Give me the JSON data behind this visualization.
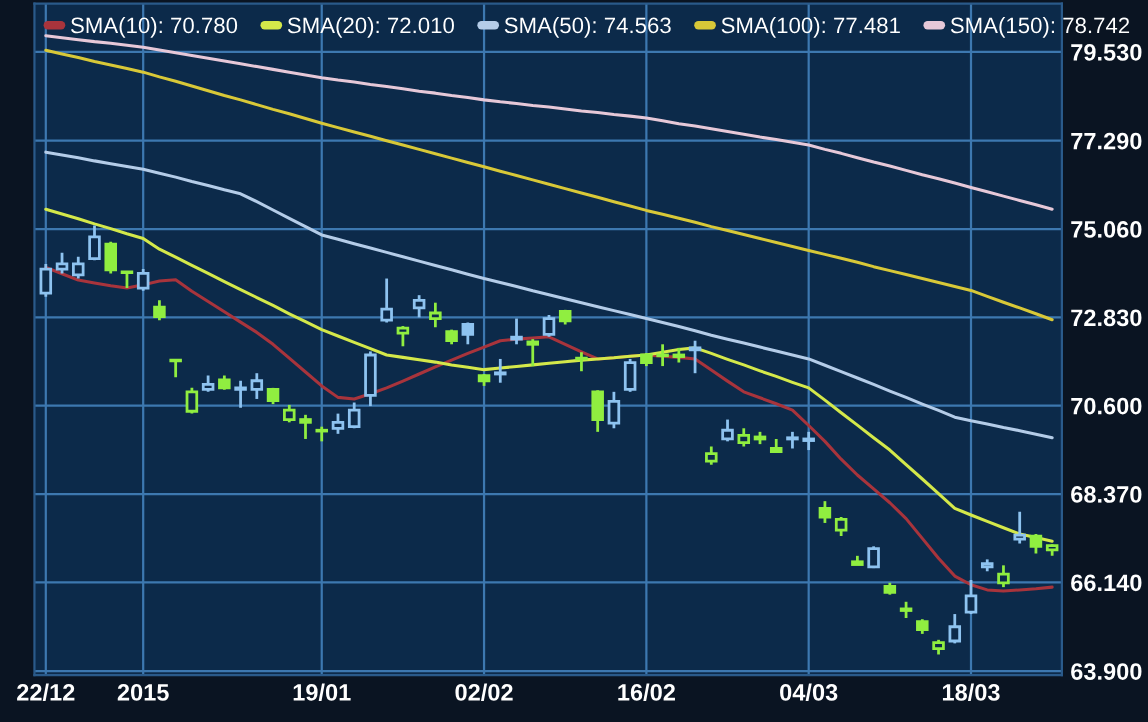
{
  "chart_data": {
    "type": "candlestick",
    "categories": [
      "22/12",
      null,
      null,
      null,
      null,
      null,
      "2015",
      null,
      null,
      null,
      null,
      null,
      null,
      null,
      null,
      null,
      null,
      "19/01",
      null,
      null,
      null,
      null,
      null,
      null,
      null,
      null,
      null,
      "02/02",
      null,
      null,
      null,
      null,
      null,
      null,
      null,
      null,
      null,
      "16/02",
      null,
      null,
      null,
      null,
      null,
      null,
      null,
      null,
      null,
      "04/03",
      null,
      null,
      null,
      null,
      null,
      null,
      null,
      null,
      null,
      "18/03",
      null,
      null,
      null,
      null,
      null
    ],
    "ohlc": [
      [
        73.44,
        74.18,
        73.35,
        74.05
      ],
      [
        74.05,
        74.46,
        73.94,
        74.18
      ],
      [
        73.9,
        74.36,
        73.81,
        74.18
      ],
      [
        74.31,
        75.15,
        74.27,
        74.86
      ],
      [
        74.68,
        74.74,
        73.94,
        74.03
      ],
      [
        73.98,
        74.0,
        73.57,
        73.96
      ],
      [
        73.57,
        74.05,
        73.5,
        73.94
      ],
      [
        73.09,
        73.26,
        72.76,
        72.85
      ],
      [
        71.75,
        71.75,
        71.32,
        71.73
      ],
      [
        70.46,
        71.05,
        70.4,
        70.95
      ],
      [
        71.01,
        71.36,
        70.95,
        71.14
      ],
      [
        71.25,
        71.36,
        71.0,
        71.05
      ],
      [
        71.01,
        71.23,
        70.55,
        71.05
      ],
      [
        71.01,
        71.42,
        70.77,
        71.23
      ],
      [
        71.01,
        71.05,
        70.64,
        70.73
      ],
      [
        70.25,
        70.62,
        70.18,
        70.49
      ],
      [
        70.25,
        70.37,
        69.76,
        70.18
      ],
      [
        69.98,
        70.07,
        69.7,
        69.96
      ],
      [
        70.03,
        70.4,
        69.89,
        70.18
      ],
      [
        70.07,
        70.68,
        70.03,
        70.49
      ],
      [
        70.86,
        71.97,
        70.59,
        71.88
      ],
      [
        72.76,
        73.81,
        72.7,
        73.04
      ],
      [
        72.43,
        72.61,
        72.1,
        72.56
      ],
      [
        73.07,
        73.39,
        72.83,
        73.26
      ],
      [
        72.8,
        73.2,
        72.58,
        72.94
      ],
      [
        72.47,
        72.52,
        72.15,
        72.24
      ],
      [
        72.65,
        72.7,
        72.15,
        72.4
      ],
      [
        71.36,
        71.4,
        71.1,
        71.23
      ],
      [
        71.4,
        71.78,
        71.18,
        71.43
      ],
      [
        72.28,
        72.8,
        72.15,
        72.33
      ],
      [
        72.21,
        72.28,
        71.6,
        72.15
      ],
      [
        72.4,
        72.89,
        72.34,
        72.8
      ],
      [
        72.98,
        73.02,
        72.65,
        72.74
      ],
      [
        71.8,
        71.95,
        71.47,
        71.78
      ],
      [
        70.95,
        70.99,
        69.94,
        70.25
      ],
      [
        70.16,
        70.95,
        70.03,
        70.71
      ],
      [
        71.01,
        71.78,
        70.95,
        71.69
      ],
      [
        71.88,
        71.93,
        71.6,
        71.69
      ],
      [
        71.88,
        72.15,
        71.6,
        71.86
      ],
      [
        71.84,
        72.06,
        71.69,
        71.88
      ],
      [
        72.01,
        72.24,
        71.42,
        72.06
      ],
      [
        69.2,
        69.57,
        69.11,
        69.39
      ],
      [
        69.76,
        70.25,
        69.7,
        69.98
      ],
      [
        69.67,
        70.03,
        69.57,
        69.85
      ],
      [
        69.81,
        69.94,
        69.63,
        69.76
      ],
      [
        69.52,
        69.76,
        69.44,
        69.44
      ],
      [
        69.76,
        69.94,
        69.52,
        69.79
      ],
      [
        69.72,
        69.94,
        69.48,
        69.76
      ],
      [
        68.01,
        68.19,
        67.64,
        67.79
      ],
      [
        67.46,
        67.79,
        67.31,
        67.73
      ],
      [
        66.66,
        66.81,
        66.59,
        66.59
      ],
      [
        66.53,
        67.05,
        66.5,
        66.99
      ],
      [
        66.04,
        66.13,
        65.83,
        65.89
      ],
      [
        65.47,
        65.65,
        65.24,
        65.43
      ],
      [
        65.15,
        65.21,
        64.84,
        64.95
      ],
      [
        64.47,
        64.69,
        64.32,
        64.62
      ],
      [
        64.66,
        65.34,
        64.6,
        65.02
      ],
      [
        65.39,
        66.2,
        65.34,
        65.8
      ],
      [
        66.53,
        66.72,
        66.42,
        66.61
      ],
      [
        66.13,
        66.57,
        66.02,
        66.35
      ],
      [
        67.23,
        67.92,
        67.12,
        67.33
      ],
      [
        67.31,
        67.36,
        66.87,
        67.05
      ],
      [
        66.96,
        67.1,
        66.81,
        67.07
      ]
    ],
    "colors": [
      "#8ec3f0",
      "#8ec3f0",
      "#8ec3f0",
      "#8ec3f0",
      "#90ee40",
      "#90ee40",
      "#8ec3f0",
      "#90ee40",
      "#90ee40",
      "#90ee40",
      "#8ec3f0",
      "#90ee40",
      "#8ec3f0",
      "#8ec3f0",
      "#90ee40",
      "#90ee40",
      "#90ee40",
      "#90ee40",
      "#8ec3f0",
      "#8ec3f0",
      "#8ec3f0",
      "#8ec3f0",
      "#90ee40",
      "#8ec3f0",
      "#90ee40",
      "#90ee40",
      "#8ec3f0",
      "#90ee40",
      "#8ec3f0",
      "#8ec3f0",
      "#90ee40",
      "#8ec3f0",
      "#90ee40",
      "#90ee40",
      "#90ee40",
      "#8ec3f0",
      "#8ec3f0",
      "#90ee40",
      "#90ee40",
      "#90ee40",
      "#8ec3f0",
      "#90ee40",
      "#8ec3f0",
      "#90ee40",
      "#90ee40",
      "#90ee40",
      "#8ec3f0",
      "#8ec3f0",
      "#90ee40",
      "#90ee40",
      "#90ee40",
      "#8ec3f0",
      "#90ee40",
      "#90ee40",
      "#90ee40",
      "#90ee40",
      "#8ec3f0",
      "#8ec3f0",
      "#8ec3f0",
      "#90ee40",
      "#8ec3f0",
      "#90ee40",
      "#90ee40"
    ],
    "series": [
      {
        "name": "SMA(10): 70.780",
        "type": "line",
        "color": "#a8343c",
        "values": [
          74.09,
          73.93,
          73.77,
          73.7,
          73.63,
          73.57,
          73.65,
          73.75,
          73.78,
          73.49,
          73.23,
          72.97,
          72.71,
          72.45,
          72.15,
          71.8,
          71.45,
          71.1,
          70.81,
          70.77,
          70.9,
          71.05,
          71.22,
          71.4,
          71.58,
          71.75,
          71.92,
          72.08,
          72.24,
          72.28,
          72.31,
          72.34,
          72.15,
          71.96,
          71.78,
          71.81,
          71.85,
          71.88,
          71.85,
          71.82,
          71.78,
          71.5,
          71.22,
          70.95,
          70.8,
          70.65,
          70.49,
          70.1,
          69.7,
          69.25,
          68.85,
          68.5,
          68.15,
          67.75,
          67.25,
          66.75,
          66.3,
          66.08,
          65.95,
          65.92,
          65.95,
          65.98,
          66.02
        ]
      },
      {
        "name": "SMA(20): 72.010",
        "type": "line",
        "color": "#d4e84a",
        "values": [
          75.56,
          75.44,
          75.32,
          75.19,
          75.07,
          74.94,
          74.82,
          74.55,
          74.35,
          74.14,
          73.94,
          73.73,
          73.53,
          73.33,
          73.13,
          72.92,
          72.72,
          72.52,
          72.36,
          72.2,
          72.04,
          71.88,
          71.82,
          71.76,
          71.7,
          71.63,
          71.57,
          71.51,
          71.55,
          71.59,
          71.63,
          71.67,
          71.71,
          71.75,
          71.78,
          71.81,
          71.85,
          71.88,
          71.95,
          72.02,
          72.06,
          71.92,
          71.77,
          71.63,
          71.48,
          71.34,
          71.19,
          71.05,
          70.74,
          70.42,
          70.11,
          69.79,
          69.48,
          69.11,
          68.75,
          68.38,
          68.01,
          67.84,
          67.68,
          67.52,
          67.36,
          67.27,
          67.18
        ]
      },
      {
        "name": "SMA(50): 74.563",
        "type": "line",
        "color": "#b4cce8",
        "values": [
          77.0,
          76.93,
          76.86,
          76.78,
          76.71,
          76.64,
          76.57,
          76.47,
          76.37,
          76.26,
          76.16,
          76.05,
          75.95,
          75.75,
          75.54,
          75.33,
          75.12,
          74.91,
          74.8,
          74.69,
          74.58,
          74.47,
          74.36,
          74.25,
          74.14,
          74.03,
          73.92,
          73.81,
          73.71,
          73.61,
          73.5,
          73.4,
          73.3,
          73.2,
          73.1,
          73.0,
          72.9,
          72.8,
          72.7,
          72.6,
          72.49,
          72.38,
          72.28,
          72.18,
          72.08,
          71.98,
          71.88,
          71.78,
          71.62,
          71.46,
          71.3,
          71.14,
          70.97,
          70.81,
          70.64,
          70.48,
          70.31,
          70.22,
          70.14,
          70.05,
          69.97,
          69.88,
          69.79
        ]
      },
      {
        "name": "SMA(100): 77.481",
        "type": "line",
        "color": "#d8c838",
        "values": [
          79.57,
          79.48,
          79.39,
          79.29,
          79.2,
          79.11,
          79.02,
          78.9,
          78.79,
          78.67,
          78.55,
          78.43,
          78.32,
          78.2,
          78.08,
          77.97,
          77.85,
          77.73,
          77.62,
          77.51,
          77.4,
          77.29,
          77.18,
          77.07,
          76.96,
          76.85,
          76.74,
          76.63,
          76.52,
          76.41,
          76.3,
          76.19,
          76.08,
          75.97,
          75.86,
          75.75,
          75.64,
          75.53,
          75.43,
          75.33,
          75.23,
          75.12,
          75.02,
          74.92,
          74.82,
          74.72,
          74.62,
          74.52,
          74.42,
          74.32,
          74.22,
          74.11,
          74.01,
          73.91,
          73.81,
          73.71,
          73.61,
          73.51,
          73.36,
          73.21,
          73.07,
          72.92,
          72.77
        ]
      },
      {
        "name": "SMA(150): 78.742",
        "type": "line",
        "color": "#e6c8d8",
        "values": [
          79.94,
          79.89,
          79.84,
          79.79,
          79.75,
          79.7,
          79.65,
          79.58,
          79.51,
          79.44,
          79.37,
          79.3,
          79.23,
          79.16,
          79.09,
          79.02,
          78.95,
          78.88,
          78.82,
          78.77,
          78.71,
          78.66,
          78.6,
          78.54,
          78.49,
          78.43,
          78.38,
          78.32,
          78.27,
          78.23,
          78.18,
          78.14,
          78.09,
          78.04,
          78.0,
          77.95,
          77.91,
          77.86,
          77.79,
          77.72,
          77.66,
          77.59,
          77.52,
          77.45,
          77.38,
          77.32,
          77.25,
          77.18,
          77.07,
          76.97,
          76.86,
          76.75,
          76.65,
          76.54,
          76.43,
          76.33,
          76.22,
          76.11,
          76.0,
          75.89,
          75.78,
          75.67,
          75.56
        ]
      }
    ],
    "ylim": [
      63.8,
      80.75
    ],
    "yticks": [
      {
        "value": 63.9,
        "label": "63.900"
      },
      {
        "value": 66.14,
        "label": "66.140"
      },
      {
        "value": 68.37,
        "label": "68.370"
      },
      {
        "value": 70.6,
        "label": "70.600"
      },
      {
        "value": 72.83,
        "label": "72.830"
      },
      {
        "value": 75.06,
        "label": "75.060"
      },
      {
        "value": 77.29,
        "label": "77.290"
      },
      {
        "value": 79.53,
        "label": "79.530"
      }
    ],
    "grid": true,
    "legend": "top left"
  }
}
